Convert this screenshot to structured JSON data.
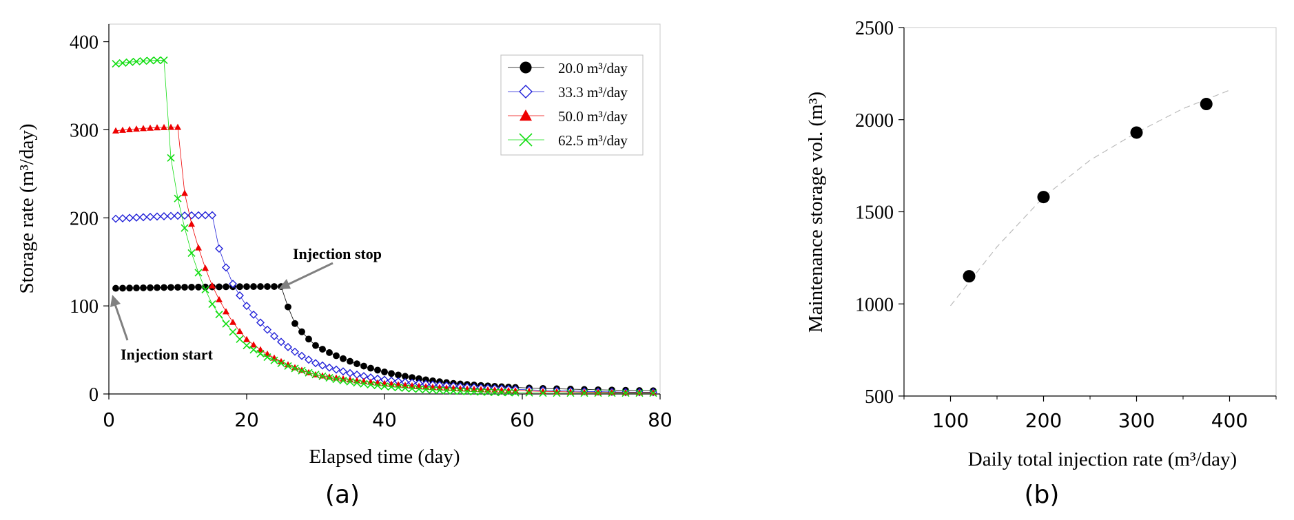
{
  "chart_data": [
    {
      "type": "scatter",
      "panel_label": "(a)",
      "xlabel": "Elapsed time (day)",
      "ylabel": "Storage rate (m³/day)",
      "xlim": [
        0,
        80
      ],
      "ylim": [
        0,
        420
      ],
      "xticks": [
        0,
        20,
        40,
        60,
        80
      ],
      "yticks": [
        0,
        100,
        200,
        300,
        400
      ],
      "legend_position": "top-right",
      "series": [
        {
          "name": "20.0 m³/day",
          "marker": "circle",
          "color": "#000000",
          "injection_days": 25,
          "plateau_start": 120,
          "plateau_end": 122,
          "tail_end": 3.5,
          "decay_samples": [
            [
              27,
              80
            ],
            [
              30,
              55
            ],
            [
              40,
              25
            ],
            [
              50,
              12
            ],
            [
              60,
              7
            ],
            [
              80,
              3.5
            ]
          ]
        },
        {
          "name": "33.3 m³/day",
          "marker": "diamond",
          "color": "#1f1fd8",
          "injection_days": 15,
          "plateau_start": 199,
          "plateau_end": 203,
          "tail_end": 2,
          "decay_samples": [
            [
              16,
              165
            ],
            [
              18,
              125
            ],
            [
              20,
              100
            ],
            [
              30,
              35
            ],
            [
              40,
              16
            ],
            [
              60,
              5
            ]
          ]
        },
        {
          "name": "50.0 m³/day",
          "marker": "triangle",
          "color": "#ee0000",
          "injection_days": 10,
          "plateau_start": 299,
          "plateau_end": 303,
          "tail_end": 1.5,
          "decay_samples": [
            [
              11,
              228
            ],
            [
              12,
              193
            ],
            [
              15,
              123
            ],
            [
              20,
              62
            ],
            [
              30,
              22
            ],
            [
              40,
              12
            ]
          ]
        },
        {
          "name": "62.5 m³/day",
          "marker": "x",
          "color": "#11dd11",
          "injection_days": 8,
          "plateau_start": 375,
          "plateau_end": 379,
          "tail_end": 1,
          "decay_samples": [
            [
              9,
              268
            ],
            [
              10,
              222
            ],
            [
              12,
              160
            ],
            [
              15,
              102
            ],
            [
              20,
              55
            ],
            [
              30,
              22
            ]
          ]
        }
      ],
      "annotations": [
        {
          "text": "Injection stop",
          "at": [
            25,
            122
          ]
        },
        {
          "text": "Injection start",
          "at": [
            1,
            120
          ]
        }
      ]
    },
    {
      "type": "scatter",
      "panel_label": "(b)",
      "xlabel": "Daily total injection rate (m³/day)",
      "ylabel": "Maintenance storage vol. (m³)",
      "xlim": [
        50,
        450
      ],
      "ylim": [
        500,
        2500
      ],
      "xticks": [
        100,
        200,
        300,
        400
      ],
      "yticks": [
        500,
        1000,
        1500,
        2000,
        2500
      ],
      "points": [
        {
          "x": 120,
          "y": 1150
        },
        {
          "x": 200,
          "y": 1580
        },
        {
          "x": 300,
          "y": 1930
        },
        {
          "x": 375,
          "y": 2085
        }
      ],
      "trendline": {
        "style": "dashed",
        "color": "#bbbbbb",
        "x": [
          100,
          150,
          200,
          250,
          300,
          350,
          400
        ],
        "y": [
          990,
          1310,
          1580,
          1780,
          1930,
          2060,
          2160
        ]
      }
    }
  ]
}
